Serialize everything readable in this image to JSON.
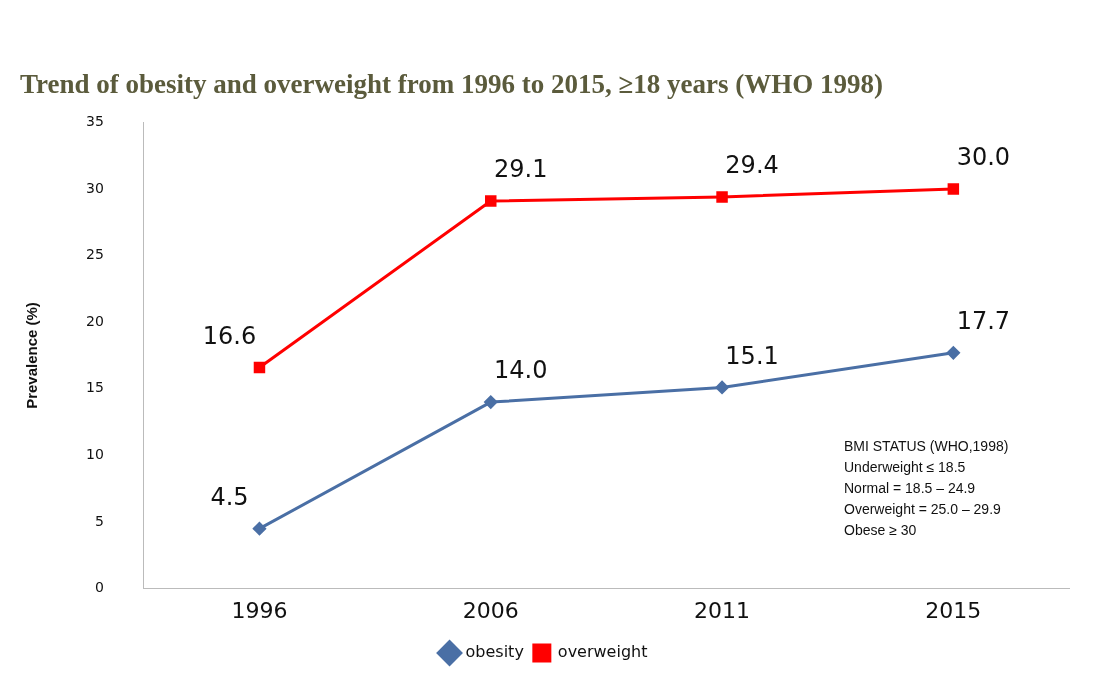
{
  "chart_data": {
    "type": "line",
    "title": "Trend of obesity and overweight from 1996 to 2015, ≥18 years (WHO 1998)",
    "ylabel": "Prevalence (%)",
    "categories": [
      "1996",
      "2006",
      "2011",
      "2015"
    ],
    "series": [
      {
        "name": "obesity",
        "color": "#4a6fa5",
        "marker": "diamond",
        "values": [
          4.5,
          14.0,
          15.1,
          17.7
        ],
        "value_labels": [
          "4.5",
          "14.0",
          "15.1",
          "17.7"
        ]
      },
      {
        "name": "overweight",
        "color": "#ff0000",
        "marker": "square",
        "values": [
          16.6,
          29.1,
          29.4,
          30.0
        ],
        "value_labels": [
          "16.6",
          "29.1",
          "29.4",
          "30.0"
        ]
      }
    ],
    "ylim": [
      0,
      35
    ],
    "yticks": [
      0,
      5,
      10,
      15,
      20,
      25,
      30,
      35
    ],
    "grid": false,
    "legend": "bottom",
    "annotations": [
      "BMI STATUS (WHO,1998)",
      "Underweight ≤ 18.5",
      "Normal = 18.5 – 24.9",
      "Overweight = 25.0 – 29.9",
      "Obese ≥ 30"
    ]
  }
}
